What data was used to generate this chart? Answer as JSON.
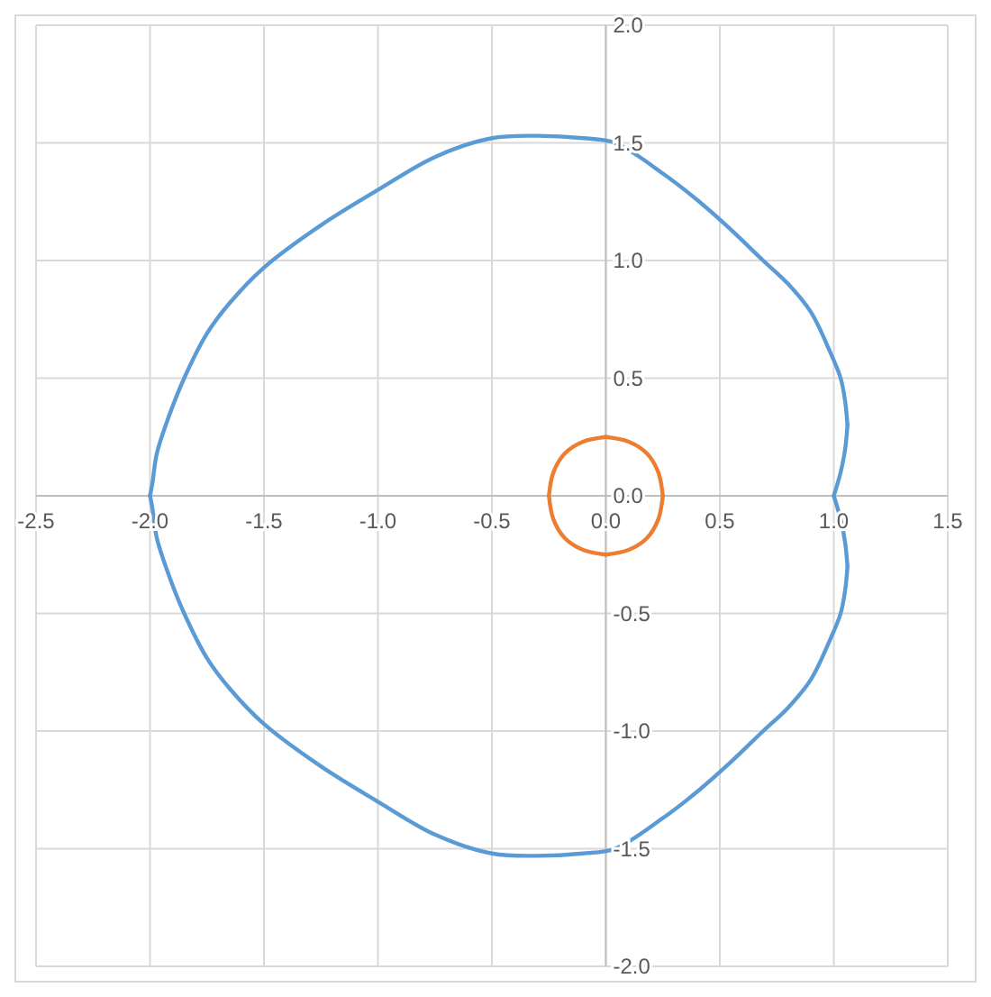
{
  "chart_data": {
    "type": "line",
    "xlim": [
      -2.5,
      1.5
    ],
    "ylim": [
      -2.0,
      2.0
    ],
    "xticks": [
      {
        "value": -2.5,
        "label": "-2.5"
      },
      {
        "value": -2,
        "label": "-2.0"
      },
      {
        "value": -1.5,
        "label": "-1.5"
      },
      {
        "value": -1,
        "label": "-1.0"
      },
      {
        "value": -0.5,
        "label": "-0.5"
      },
      {
        "value": 0,
        "label": "0.0"
      },
      {
        "value": 0.5,
        "label": "0.5"
      },
      {
        "value": 1,
        "label": "1.0"
      },
      {
        "value": 1.5,
        "label": "1.5"
      }
    ],
    "yticks": [
      {
        "value": -2,
        "label": "-2.0"
      },
      {
        "value": -1.5,
        "label": "-1.5"
      },
      {
        "value": -1,
        "label": "-1.0"
      },
      {
        "value": -0.5,
        "label": "-0.5"
      },
      {
        "value": 0,
        "label": "0.0"
      },
      {
        "value": 0.5,
        "label": "0.5"
      },
      {
        "value": 1,
        "label": "1.0"
      },
      {
        "value": 1.5,
        "label": "1.5"
      },
      {
        "value": 2,
        "label": "2.0"
      }
    ],
    "grid": true,
    "marker": "none",
    "line_style": "solid",
    "series": [
      {
        "color": "#5b9bd5",
        "x": [
          1.0,
          1.03,
          1.05,
          1.06
        ],
        "values": [
          0.0,
          0.1,
          0.2,
          0.3
        ]
      },
      {
        "color": "#5b9bd5",
        "x": [
          -2.0,
          -1.99,
          -1.97,
          -1.92,
          -1.85,
          -1.75,
          -1.65,
          -1.5,
          -1.25,
          -1.0,
          -0.75,
          -0.5,
          -0.3,
          -0.1,
          0.04,
          0.25,
          0.41,
          0.55,
          0.69,
          0.8,
          0.9,
          0.98,
          1.03,
          1.05,
          1.06
        ],
        "values": [
          0.0,
          0.05,
          0.18,
          0.33,
          0.5,
          0.69,
          0.82,
          0.97,
          1.15,
          1.3,
          1.44,
          1.52,
          1.53,
          1.52,
          1.5,
          1.37,
          1.25,
          1.13,
          1.0,
          0.9,
          0.78,
          0.62,
          0.5,
          0.4,
          0.3
        ]
      },
      {
        "color": "#5b9bd5",
        "x": [
          -2.0,
          -1.99,
          -1.97,
          -1.92,
          -1.85,
          -1.75,
          -1.65,
          -1.5,
          -1.25,
          -1.0,
          -0.75,
          -0.5,
          -0.3,
          -0.1,
          0.04,
          0.25,
          0.41,
          0.55,
          0.69,
          0.8,
          0.9,
          0.98,
          1.03,
          1.05,
          1.06
        ],
        "values": [
          0.0,
          -0.05,
          -0.18,
          -0.33,
          -0.5,
          -0.69,
          -0.82,
          -0.97,
          -1.15,
          -1.3,
          -1.44,
          -1.52,
          -1.53,
          -1.52,
          -1.5,
          -1.37,
          -1.25,
          -1.13,
          -1.0,
          -0.9,
          -0.78,
          -0.62,
          -0.5,
          -0.4,
          -0.3
        ]
      },
      {
        "color": "#5b9bd5",
        "x": [
          1.0,
          1.03,
          1.05,
          1.06
        ],
        "values": [
          0.0,
          -0.1,
          -0.2,
          -0.3
        ]
      },
      {
        "color": "#ed7d31",
        "x": [
          -0.25,
          -0.23,
          -0.18,
          -0.1,
          0.0
        ],
        "values": [
          0.0,
          0.1,
          0.18,
          0.23,
          0.25
        ]
      },
      {
        "color": "#ed7d31",
        "x": [
          0.0,
          0.1,
          0.18,
          0.23,
          0.25
        ],
        "values": [
          0.25,
          0.23,
          0.18,
          0.1,
          0.0
        ]
      },
      {
        "color": "#ed7d31",
        "x": [
          -0.25,
          -0.23,
          -0.18,
          -0.1,
          0.0
        ],
        "values": [
          0.0,
          -0.1,
          -0.18,
          -0.23,
          -0.25
        ]
      },
      {
        "color": "#ed7d31",
        "x": [
          0.0,
          0.1,
          0.18,
          0.23,
          0.25
        ],
        "values": [
          -0.25,
          -0.23,
          -0.18,
          -0.1,
          0.0
        ]
      }
    ]
  }
}
